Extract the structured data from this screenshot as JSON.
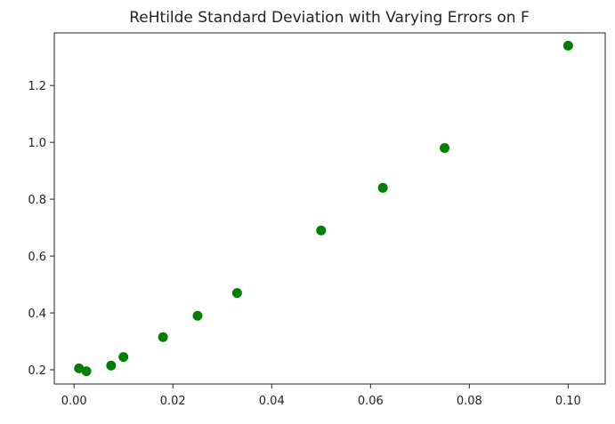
{
  "chart_data": {
    "type": "scatter",
    "title": "ReHtilde Standard Deviation with Varying Errors on F",
    "xlabel": "",
    "ylabel": "",
    "xlim": [
      -0.004,
      0.1075
    ],
    "ylim": [
      0.15,
      1.385
    ],
    "x_ticks": [
      0.0,
      0.02,
      0.04,
      0.06,
      0.08,
      0.1
    ],
    "x_tick_labels": [
      "0.00",
      "0.02",
      "0.04",
      "0.06",
      "0.08",
      "0.10"
    ],
    "y_ticks": [
      0.2,
      0.4,
      0.6,
      0.8,
      1.0,
      1.2
    ],
    "y_tick_labels": [
      "0.2",
      "0.4",
      "0.6",
      "0.8",
      "1.0",
      "1.2"
    ],
    "grid": false,
    "series": [
      {
        "color": "#008000",
        "points": [
          {
            "x": 0.001,
            "y": 0.205
          },
          {
            "x": 0.0025,
            "y": 0.195
          },
          {
            "x": 0.0075,
            "y": 0.215
          },
          {
            "x": 0.01,
            "y": 0.245
          },
          {
            "x": 0.018,
            "y": 0.315
          },
          {
            "x": 0.025,
            "y": 0.39
          },
          {
            "x": 0.033,
            "y": 0.47
          },
          {
            "x": 0.05,
            "y": 0.69
          },
          {
            "x": 0.0625,
            "y": 0.84
          },
          {
            "x": 0.075,
            "y": 0.98
          },
          {
            "x": 0.1,
            "y": 1.34
          }
        ]
      }
    ]
  }
}
